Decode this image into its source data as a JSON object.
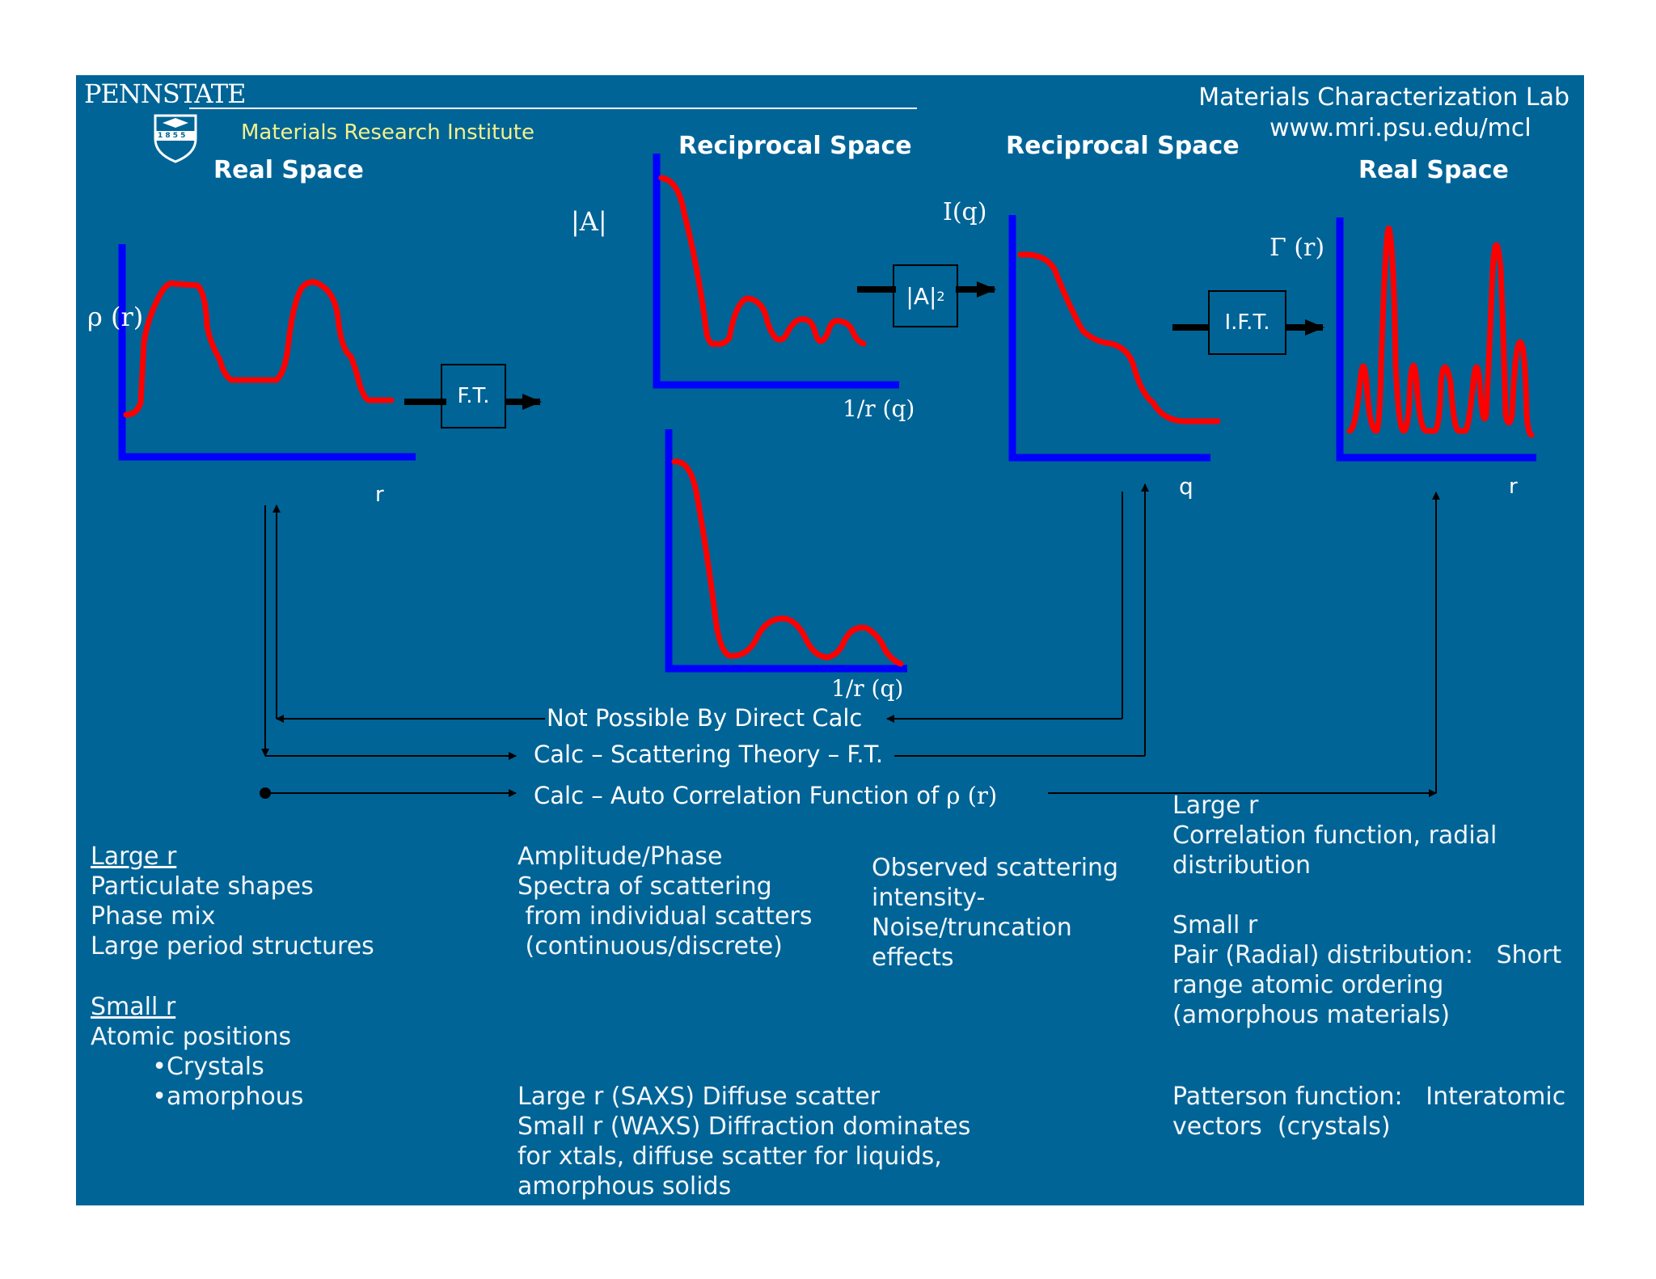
{
  "header": {
    "logo_wordmark": "PENNSTATE",
    "shield_year": "1 8 5 5",
    "institute": "Materials Research Institute",
    "lab_name": "Materials Characterization Lab",
    "lab_url": "www.mri.psu.edu/mcl"
  },
  "headings": {
    "real_space_left": "Real Space",
    "reciprocal_space_1": "Reciprocal Space",
    "reciprocal_space_2": "Reciprocal Space",
    "real_space_right": "Real Space"
  },
  "axis_labels": {
    "rho_r": "ρ (r)",
    "r_left": "r",
    "abs_a": "|A|",
    "one_over_r_q_top": "1/r (q)",
    "one_over_r_q_bottom": "1/r (q)",
    "i_q": "I(q)",
    "q": "q",
    "gamma_r": "Γ (r)",
    "r_right": "r"
  },
  "operators": {
    "ft": "F.T.",
    "abs_a_squared": "|A|",
    "squared_exponent": "2",
    "ift": "I.F.T."
  },
  "flow_labels": {
    "not_possible": "Not Possible By Direct Calc",
    "scattering_theory": "Calc – Scattering Theory – F.T.",
    "auto_correlation": "Calc – Auto Correlation Function of",
    "auto_correlation_symbol": "ρ (r)"
  },
  "notes": {
    "col1_large_r_heading": "Large r",
    "col1_large_r_body": "Particulate shapes\nPhase mix\nLarge period structures",
    "col1_small_r_heading": "Small r",
    "col1_small_r_body": "Atomic positions\n        •Crystals\n        •amorphous",
    "col2_top": "Amplitude/Phase\nSpectra of scattering\n from individual scatters\n (continuous/discrete)",
    "col2_bottom": "Large r (SAXS) Diffuse scatter\nSmall r (WAXS) Diffraction dominates\nfor xtals, diffuse scatter for liquids,\namorphous solids",
    "col3": "Observed scattering\nintensity-\nNoise/truncation\neffects",
    "col4_large_r": "Large r\nCorrelation function, radial\ndistribution",
    "col4_small_r": "Small r\nPair (Radial) distribution:   Short\nrange atomic ordering\n(amorphous materials)",
    "col4_patterson": "Patterson function:   Interatomic\nvectors  (crystals)"
  },
  "colors": {
    "background": "#006497",
    "axis": "#0000ff",
    "curve": "#ff0000",
    "institute_text": "#f4f08a"
  }
}
